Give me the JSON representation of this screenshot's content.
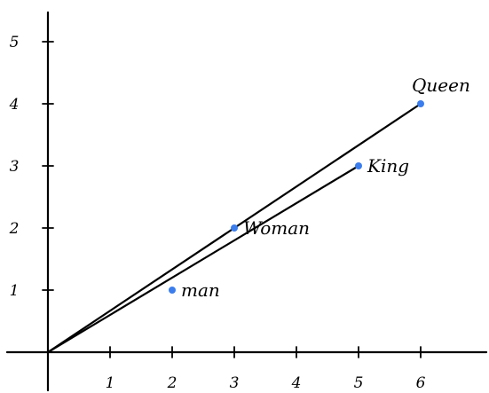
{
  "chart_data": {
    "type": "scatter",
    "title": "",
    "xlabel": "",
    "ylabel": "",
    "xlim": [
      0,
      6
    ],
    "ylim": [
      0,
      5
    ],
    "x_ticks": [
      "1",
      "2",
      "3",
      "4",
      "5",
      "6"
    ],
    "y_ticks": [
      "1",
      "2",
      "3",
      "4",
      "5"
    ],
    "grid": false,
    "points": [
      {
        "label": "man",
        "x": 2,
        "y": 1
      },
      {
        "label": "Woman",
        "x": 3,
        "y": 2
      },
      {
        "label": "King",
        "x": 5,
        "y": 3
      },
      {
        "label": "Queen",
        "x": 6,
        "y": 4
      }
    ],
    "vectors_from_origin": [
      "King",
      "Queen"
    ]
  },
  "colors": {
    "point": "#3b7ded",
    "line": "#000000",
    "background": "#ffffff"
  }
}
